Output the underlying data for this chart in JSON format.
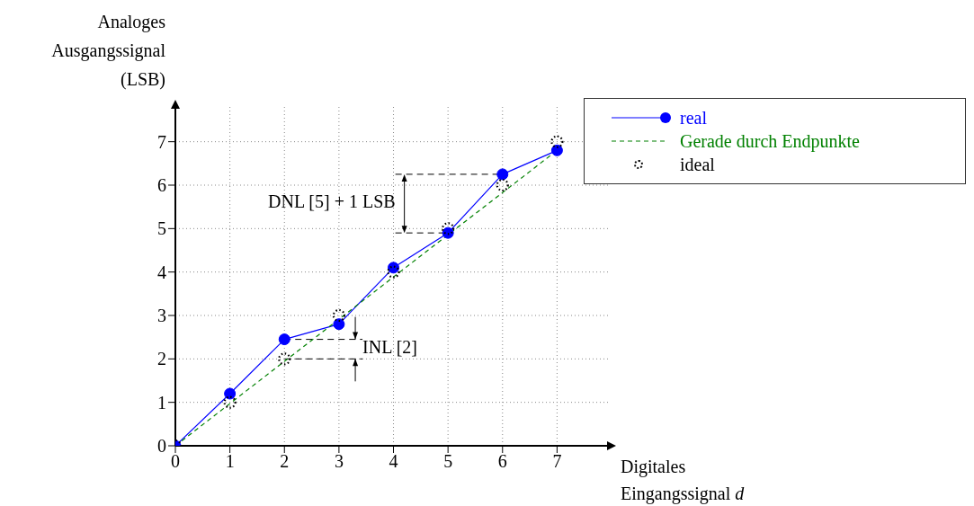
{
  "chart_data": {
    "type": "line",
    "ylabel": "Analoges Ausgangssignal (LSB)",
    "xlabel": "Digitales Eingangssignal d",
    "x": [
      0,
      1,
      2,
      3,
      4,
      5,
      6,
      7
    ],
    "series": [
      {
        "name": "real",
        "color": "#0000ff",
        "marker": "circle",
        "line_style": "solid",
        "values": [
          0,
          1.2,
          2.45,
          2.8,
          4.1,
          4.9,
          6.25,
          6.8
        ]
      },
      {
        "name": "Gerade durch Endpunkte",
        "color": "#008000",
        "marker": "none",
        "line_style": "dashed",
        "x": [
          0,
          7
        ],
        "values": [
          0,
          6.8
        ]
      },
      {
        "name": "ideal",
        "color": "#000000",
        "type": "scatter",
        "marker": "circle",
        "line_style": "dotted",
        "values": [
          0,
          1,
          2,
          3,
          4,
          5,
          6,
          7
        ]
      }
    ],
    "annotations": [
      {
        "text": "DNL [5] + 1 LSB",
        "x": 6,
        "y": 6.25
      },
      {
        "text": "INL [2]",
        "x": 2,
        "y": 2
      }
    ],
    "xlim": [
      0,
      7.95
    ],
    "ylim": [
      0,
      7.8
    ],
    "xticks": [
      0,
      1,
      2,
      3,
      4,
      5,
      6,
      7
    ],
    "yticks": [
      0,
      1,
      2,
      3,
      4,
      5,
      6,
      7
    ],
    "grid": true,
    "legend": "top right"
  }
}
